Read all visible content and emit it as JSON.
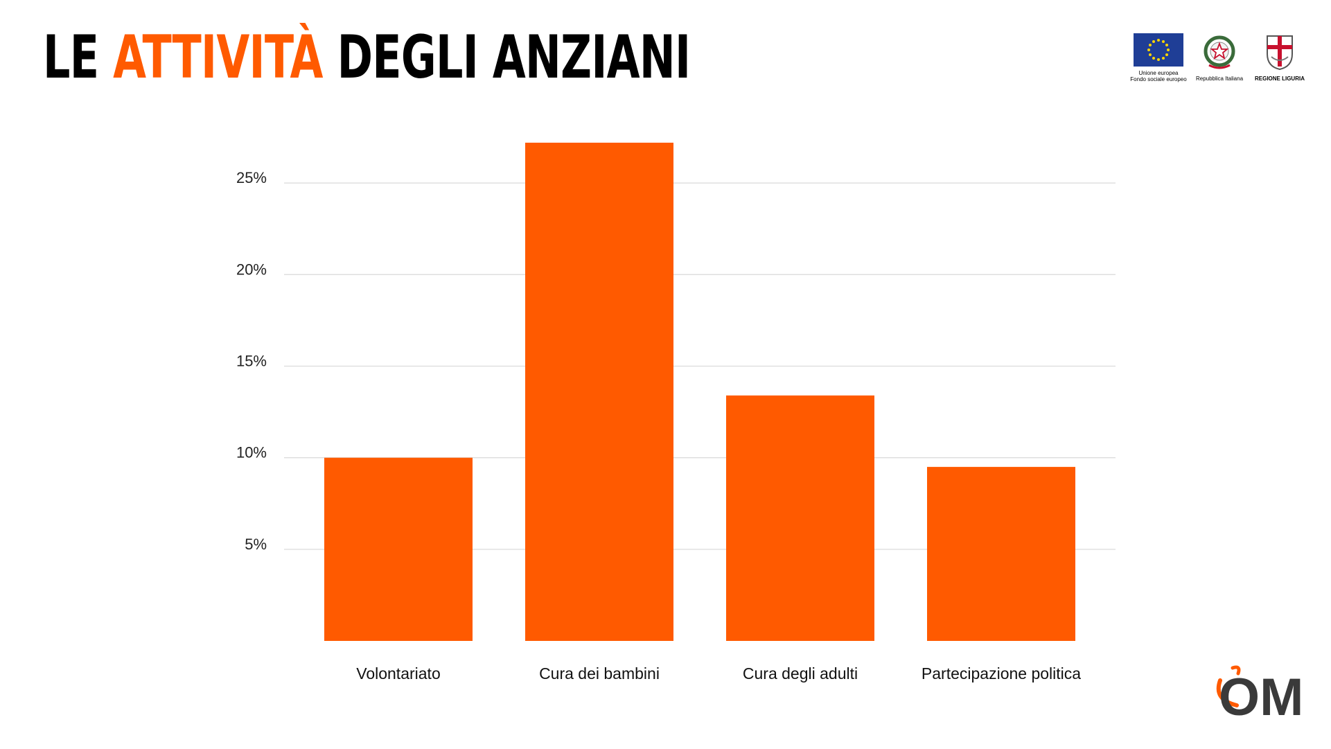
{
  "title": {
    "before": "LE ",
    "accent": "ATTIVITÀ",
    "after": " DEGLI ANZIANI"
  },
  "logos": {
    "eu_caption_1": "Unione europea",
    "eu_caption_2": "Fondo sociale europeo",
    "italy_caption": "Repubblica Italiana",
    "liguria_caption": "REGIONE LIGURIA",
    "om_text": "OM"
  },
  "colors": {
    "bar": "#ff5a00",
    "grid": "#d9d9d9",
    "accent": "#ff5a00",
    "eu_blue": "#1f3e96",
    "eu_star": "#ffd500"
  },
  "icons": [
    "eu-flag-icon",
    "italian-emblem-icon",
    "liguria-shield-icon",
    "om-logo-icon"
  ],
  "chart_data": {
    "type": "bar",
    "categories": [
      "Volontariato",
      "Cura dei bambini",
      "Cura degli adulti",
      "Partecipazione politica"
    ],
    "values": [
      10.0,
      27.2,
      13.4,
      9.5
    ],
    "ylim": [
      0,
      27.5
    ],
    "yticks": [
      5,
      10,
      15,
      20,
      25
    ],
    "ytick_labels": [
      "5%",
      "10%",
      "15%",
      "20%",
      "25%"
    ],
    "grid": true
  }
}
